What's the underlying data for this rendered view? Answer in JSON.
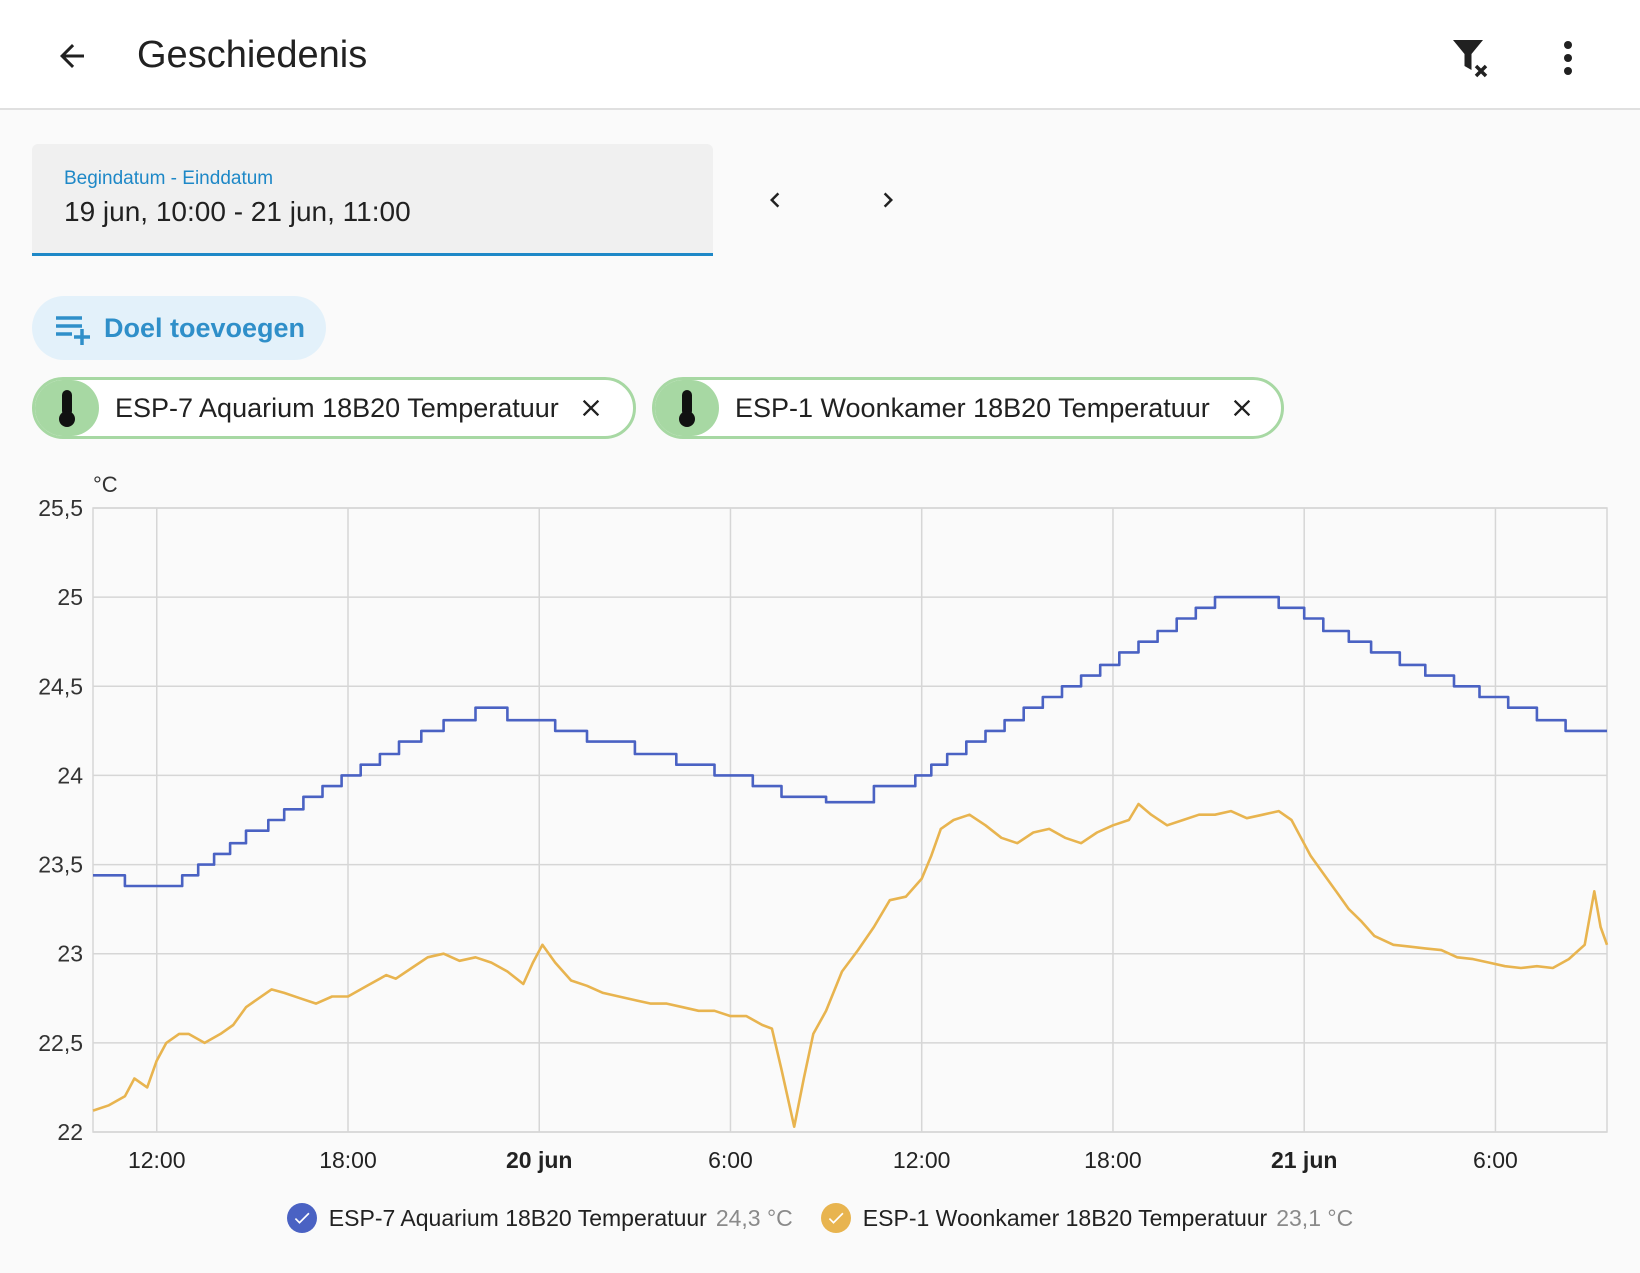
{
  "header": {
    "title": "Geschiedenis"
  },
  "date_range": {
    "label": "Begindatum - Einddatum",
    "value": "19 jun, 10:00 - 21 jun, 11:00"
  },
  "add_target": {
    "label": "Doel toevoegen"
  },
  "chips": [
    {
      "label": "ESP-7 Aquarium 18B20 Temperatuur",
      "icon": "thermometer-icon"
    },
    {
      "label": "ESP-1 Woonkamer 18B20 Temperatuur",
      "icon": "thermometer-icon"
    }
  ],
  "colors": {
    "accent": "#1e88c7",
    "aquarium": "#4a62c3",
    "woonkamer": "#e8b44f",
    "chip": "#a7d8a3"
  },
  "chart_data": {
    "type": "line",
    "ylabel": "°C",
    "ylim": [
      22,
      25.5
    ],
    "y_ticks": [
      "22",
      "22,5",
      "23",
      "23,5",
      "24",
      "24,5",
      "25",
      "25,5"
    ],
    "x_ticks": [
      {
        "label": "12:00",
        "bold": false
      },
      {
        "label": "18:00",
        "bold": false
      },
      {
        "label": "20 jun",
        "bold": true
      },
      {
        "label": "6:00",
        "bold": false
      },
      {
        "label": "12:00",
        "bold": false
      },
      {
        "label": "18:00",
        "bold": false
      },
      {
        "label": "21 jun",
        "bold": true
      },
      {
        "label": "6:00",
        "bold": false
      }
    ],
    "x_unit": "hours since 19 jun 00:00",
    "xlim": [
      10,
      57.5
    ],
    "tick_hours": [
      12,
      18,
      24,
      30,
      36,
      42,
      48,
      54
    ],
    "grid": true,
    "series": [
      {
        "name": "ESP-7 Aquarium 18B20 Temperatuur",
        "current": "24,3 °C",
        "color": "#4a62c3",
        "step": true,
        "points": [
          [
            10,
            23.44
          ],
          [
            11,
            23.38
          ],
          [
            11.5,
            23.38
          ],
          [
            12.8,
            23.44
          ],
          [
            13.3,
            23.5
          ],
          [
            13.8,
            23.56
          ],
          [
            14.3,
            23.62
          ],
          [
            14.8,
            23.69
          ],
          [
            15.5,
            23.75
          ],
          [
            16.0,
            23.81
          ],
          [
            16.6,
            23.88
          ],
          [
            17.2,
            23.94
          ],
          [
            17.8,
            24.0
          ],
          [
            18.4,
            24.06
          ],
          [
            19.0,
            24.12
          ],
          [
            19.6,
            24.19
          ],
          [
            20.3,
            24.25
          ],
          [
            21.0,
            24.31
          ],
          [
            22.0,
            24.38
          ],
          [
            23.0,
            24.31
          ],
          [
            24.5,
            24.25
          ],
          [
            25.5,
            24.19
          ],
          [
            27.0,
            24.12
          ],
          [
            28.3,
            24.06
          ],
          [
            29.5,
            24.0
          ],
          [
            30.7,
            23.94
          ],
          [
            31.6,
            23.88
          ],
          [
            33.0,
            23.85
          ],
          [
            34.5,
            23.94
          ],
          [
            35.8,
            24.0
          ],
          [
            36.3,
            24.06
          ],
          [
            36.8,
            24.12
          ],
          [
            37.4,
            24.19
          ],
          [
            38.0,
            24.25
          ],
          [
            38.6,
            24.31
          ],
          [
            39.2,
            24.38
          ],
          [
            39.8,
            24.44
          ],
          [
            40.4,
            24.5
          ],
          [
            41.0,
            24.56
          ],
          [
            41.6,
            24.62
          ],
          [
            42.2,
            24.69
          ],
          [
            42.8,
            24.75
          ],
          [
            43.4,
            24.81
          ],
          [
            44.0,
            24.88
          ],
          [
            44.6,
            24.94
          ],
          [
            45.2,
            25.0
          ],
          [
            46.0,
            25.0
          ],
          [
            47.2,
            24.94
          ],
          [
            48.0,
            24.88
          ],
          [
            48.6,
            24.81
          ],
          [
            49.4,
            24.75
          ],
          [
            50.1,
            24.69
          ],
          [
            51.0,
            24.62
          ],
          [
            51.8,
            24.56
          ],
          [
            52.7,
            24.5
          ],
          [
            53.5,
            24.44
          ],
          [
            54.4,
            24.38
          ],
          [
            55.3,
            24.31
          ],
          [
            56.2,
            24.25
          ],
          [
            57.5,
            24.25
          ]
        ]
      },
      {
        "name": "ESP-1 Woonkamer 18B20 Temperatuur",
        "current": "23,1 °C",
        "color": "#e8b44f",
        "step": false,
        "points": [
          [
            10,
            22.12
          ],
          [
            10.5,
            22.15
          ],
          [
            11.0,
            22.2
          ],
          [
            11.3,
            22.3
          ],
          [
            11.7,
            22.25
          ],
          [
            12.0,
            22.4
          ],
          [
            12.3,
            22.5
          ],
          [
            12.7,
            22.55
          ],
          [
            13.0,
            22.55
          ],
          [
            13.5,
            22.5
          ],
          [
            14.0,
            22.55
          ],
          [
            14.4,
            22.6
          ],
          [
            14.8,
            22.7
          ],
          [
            15.2,
            22.75
          ],
          [
            15.6,
            22.8
          ],
          [
            16.0,
            22.78
          ],
          [
            16.5,
            22.75
          ],
          [
            17.0,
            22.72
          ],
          [
            17.5,
            22.76
          ],
          [
            18.0,
            22.76
          ],
          [
            18.6,
            22.82
          ],
          [
            19.2,
            22.88
          ],
          [
            19.5,
            22.86
          ],
          [
            20.0,
            22.92
          ],
          [
            20.5,
            22.98
          ],
          [
            21.0,
            23.0
          ],
          [
            21.5,
            22.96
          ],
          [
            22.0,
            22.98
          ],
          [
            22.5,
            22.95
          ],
          [
            23.0,
            22.9
          ],
          [
            23.5,
            22.83
          ],
          [
            23.8,
            22.95
          ],
          [
            24.1,
            23.05
          ],
          [
            24.5,
            22.95
          ],
          [
            25.0,
            22.85
          ],
          [
            25.5,
            22.82
          ],
          [
            26.0,
            22.78
          ],
          [
            26.5,
            22.76
          ],
          [
            27.0,
            22.74
          ],
          [
            27.5,
            22.72
          ],
          [
            28.0,
            22.72
          ],
          [
            28.5,
            22.7
          ],
          [
            29.0,
            22.68
          ],
          [
            29.5,
            22.68
          ],
          [
            30.0,
            22.65
          ],
          [
            30.5,
            22.65
          ],
          [
            31.0,
            22.6
          ],
          [
            31.3,
            22.58
          ],
          [
            31.6,
            22.35
          ],
          [
            32.0,
            22.03
          ],
          [
            32.3,
            22.3
          ],
          [
            32.6,
            22.55
          ],
          [
            33.0,
            22.68
          ],
          [
            33.5,
            22.9
          ],
          [
            34.0,
            23.02
          ],
          [
            34.5,
            23.15
          ],
          [
            35.0,
            23.3
          ],
          [
            35.5,
            23.32
          ],
          [
            36.0,
            23.42
          ],
          [
            36.3,
            23.55
          ],
          [
            36.6,
            23.7
          ],
          [
            37.0,
            23.75
          ],
          [
            37.5,
            23.78
          ],
          [
            38.0,
            23.72
          ],
          [
            38.5,
            23.65
          ],
          [
            39.0,
            23.62
          ],
          [
            39.5,
            23.68
          ],
          [
            40.0,
            23.7
          ],
          [
            40.5,
            23.65
          ],
          [
            41.0,
            23.62
          ],
          [
            41.5,
            23.68
          ],
          [
            42.0,
            23.72
          ],
          [
            42.5,
            23.75
          ],
          [
            42.8,
            23.84
          ],
          [
            43.2,
            23.78
          ],
          [
            43.7,
            23.72
          ],
          [
            44.2,
            23.75
          ],
          [
            44.7,
            23.78
          ],
          [
            45.2,
            23.78
          ],
          [
            45.7,
            23.8
          ],
          [
            46.2,
            23.76
          ],
          [
            46.7,
            23.78
          ],
          [
            47.2,
            23.8
          ],
          [
            47.6,
            23.75
          ],
          [
            47.9,
            23.65
          ],
          [
            48.2,
            23.55
          ],
          [
            48.6,
            23.45
          ],
          [
            49.0,
            23.35
          ],
          [
            49.4,
            23.25
          ],
          [
            49.8,
            23.18
          ],
          [
            50.2,
            23.1
          ],
          [
            50.8,
            23.05
          ],
          [
            51.3,
            23.04
          ],
          [
            51.8,
            23.03
          ],
          [
            52.3,
            23.02
          ],
          [
            52.8,
            22.98
          ],
          [
            53.3,
            22.97
          ],
          [
            53.8,
            22.95
          ],
          [
            54.3,
            22.93
          ],
          [
            54.8,
            22.92
          ],
          [
            55.3,
            22.93
          ],
          [
            55.8,
            22.92
          ],
          [
            56.3,
            22.97
          ],
          [
            56.8,
            23.05
          ],
          [
            57.1,
            23.35
          ],
          [
            57.3,
            23.15
          ],
          [
            57.5,
            23.05
          ]
        ]
      }
    ]
  }
}
